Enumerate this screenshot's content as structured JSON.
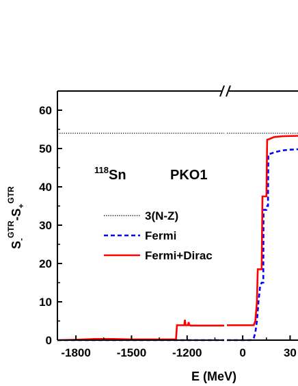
{
  "chart_data": {
    "type": "line",
    "title": "",
    "xlabel": "E (MeV)",
    "ylabel_main": "S",
    "ylabel_sub1": "-",
    "ylabel_sup1": "GTR",
    "ylabel_mid": "-S",
    "ylabel_sub2": "+",
    "ylabel_sup2": "GTR",
    "x_axis_broken": true,
    "x_segments": [
      {
        "xlim": [
          -1900,
          -1000
        ],
        "ticks": [
          -1800,
          -1500,
          -1200
        ],
        "tick_labels": [
          "-1800",
          "-1500",
          "-1200"
        ]
      },
      {
        "xlim": [
          -10,
          35
        ],
        "ticks": [
          0,
          30
        ],
        "tick_labels": [
          "0",
          "30"
        ]
      }
    ],
    "ylim": [
      0,
      65
    ],
    "yticks": [
      0,
      10,
      20,
      30,
      40,
      50,
      60
    ],
    "ytick_labels": [
      "0",
      "10",
      "20",
      "30",
      "40",
      "50",
      "60"
    ],
    "grid": false,
    "legend_position": "center-left",
    "annotations": {
      "nucleus_mass": "118",
      "nucleus_symbol": "Sn",
      "model": "PKO1"
    },
    "series": [
      {
        "name": "3(N-Z)",
        "color": "#000000",
        "style": "dotted",
        "segments": [
          [
            [
              -1900,
              54
            ],
            [
              -1000,
              54
            ]
          ],
          [
            [
              -10,
              54
            ],
            [
              35,
              54
            ]
          ]
        ]
      },
      {
        "name": "Fermi",
        "color": "#0000ff",
        "style": "dashed",
        "segments": [
          [
            [
              -1900,
              0
            ],
            [
              -1000,
              0
            ]
          ],
          [
            [
              -10,
              0
            ],
            [
              5,
              0
            ],
            [
              7,
              0.5
            ],
            [
              8,
              2
            ],
            [
              9,
              5
            ],
            [
              10,
              10
            ],
            [
              11,
              14
            ],
            [
              12,
              15
            ],
            [
              13,
              15
            ],
            [
              13.2,
              34
            ],
            [
              15,
              34
            ],
            [
              15.5,
              35
            ],
            [
              16,
              35
            ],
            [
              16.2,
              48.5
            ],
            [
              18,
              48.7
            ],
            [
              20,
              49
            ],
            [
              25,
              49.5
            ],
            [
              30,
              49.7
            ],
            [
              35,
              49.8
            ]
          ]
        ]
      },
      {
        "name": "Fermi+Dirac",
        "color": "#ff0000",
        "style": "solid",
        "segments": [
          [
            [
              -1900,
              0
            ],
            [
              -1800,
              0.1
            ],
            [
              -1700,
              0.3
            ],
            [
              -1600,
              0.3
            ],
            [
              -1500,
              0.2
            ],
            [
              -1400,
              0.2
            ],
            [
              -1300,
              0.2
            ],
            [
              -1260,
              0.2
            ],
            [
              -1255,
              3.9
            ],
            [
              -1215,
              3.9
            ],
            [
              -1212,
              5.3
            ],
            [
              -1208,
              3.9
            ],
            [
              -1195,
              3.9
            ],
            [
              -1192,
              4.7
            ],
            [
              -1188,
              3.9
            ],
            [
              -1180,
              3.8
            ],
            [
              -1100,
              3.8
            ],
            [
              -1000,
              3.8
            ]
          ],
          [
            [
              -10,
              3.9
            ],
            [
              7,
              3.9
            ],
            [
              8,
              5
            ],
            [
              9,
              10
            ],
            [
              9.5,
              18.5
            ],
            [
              12,
              18.5
            ],
            [
              12.5,
              37.5
            ],
            [
              15,
              37.5
            ],
            [
              15.5,
              52.3
            ],
            [
              17,
              52.5
            ],
            [
              20,
              53
            ],
            [
              25,
              53.2
            ],
            [
              35,
              53.3
            ]
          ]
        ]
      }
    ]
  }
}
